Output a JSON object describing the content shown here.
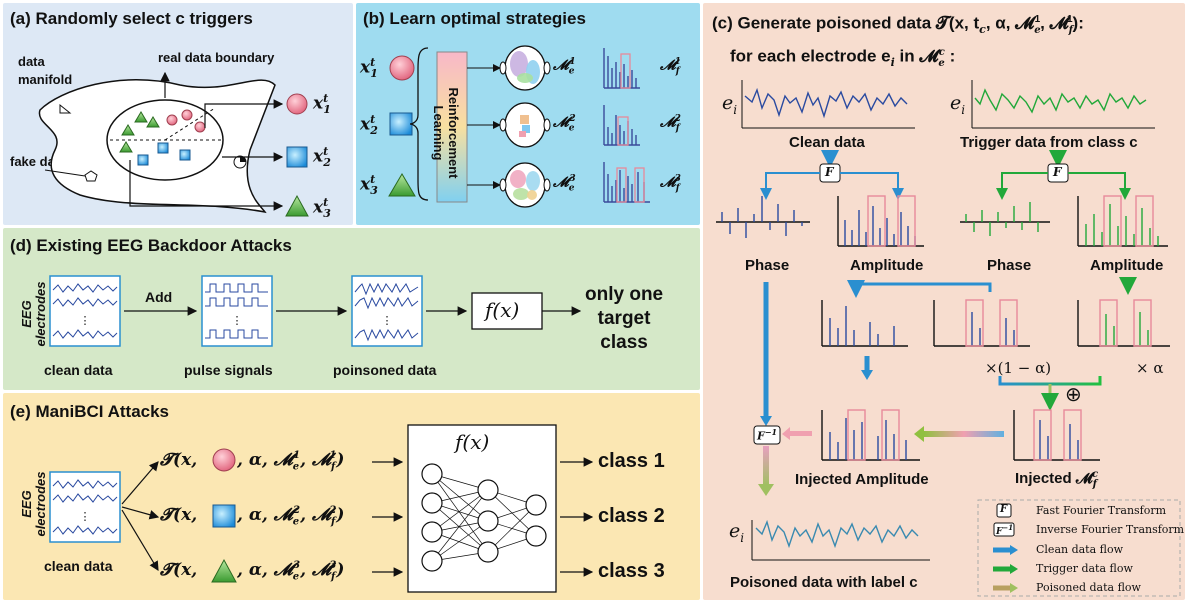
{
  "panel_a": {
    "title": "(a) Randomly select c triggers",
    "data_manifold": "data\nmanifold",
    "real_boundary": "real data boundary",
    "fake_data": "fake data",
    "x1": "x",
    "x2": "x",
    "x3": "x",
    "sup": "t",
    "sub1": "1",
    "sub2": "2",
    "sub3": "3"
  },
  "panel_b": {
    "title": "(b) Learn optimal strategies",
    "rl": "Reinforcement\nLearning",
    "me1": "𝓜",
    "me_sub": "e",
    "mf_sub": "f",
    "labels": [
      "1",
      "2",
      "3"
    ]
  },
  "panel_c": {
    "title_line1": "(c) Generate poisoned data  𝓣(x, t",
    "title_tail": ", α, 𝓜",
    "title_line2": "for each electrode e",
    "title_line2_tail": " in 𝓜",
    "ei": "e",
    "clean_data": "Clean data",
    "trigger_data": "Trigger data from class c",
    "phase1": "Phase",
    "amplitude1": "Amplitude",
    "phase2": "Phase",
    "amplitude2": "Amplitude",
    "one_minus_alpha": "×(1 − α)",
    "times_alpha": "× α",
    "oplus": "⊕",
    "F": "F",
    "Finv": "F",
    "injected_amplitude": "Injected Amplitude",
    "injected_mf": "Injected 𝓜",
    "poisoned": "Poisoned data with label c",
    "legend": {
      "fft": "Fast Fourier Transform",
      "ifft": "Inverse Fourier Transform",
      "clean_flow": "Clean data flow",
      "trigger_flow": "Trigger data flow",
      "poisoned_flow": "Poisoned data flow"
    }
  },
  "panel_d": {
    "title": "(d) Existing EEG Backdoor Attacks",
    "eeg": "EEG\nelectrodes",
    "add": "Add",
    "clean_data": "clean data",
    "pulse": "pulse signals",
    "poisoned": "poinsoned data",
    "fx": "f(x)",
    "result": "only one\ntarget\nclass"
  },
  "panel_e": {
    "title": "(e) ManiBCI Attacks",
    "eeg": "EEG\nelectrodes",
    "clean_data": "clean data",
    "fx": "f(x)",
    "t_open": "𝓣(x,",
    "t_mid": ", α, 𝓜",
    "classes": [
      "class 1",
      "class 2",
      "class 3"
    ]
  },
  "colors": {
    "panel_a": "#dde8f5",
    "panel_b": "#9fdcf0",
    "panel_c": "#f7ddcf",
    "panel_d": "#d5e8c8",
    "panel_e": "#fbe7b3",
    "clean_flow": "#2a8fd0",
    "trigger_flow": "#22a83a",
    "eeg_blue": "#2a4aa0",
    "pink_box": "#e88a9a"
  }
}
